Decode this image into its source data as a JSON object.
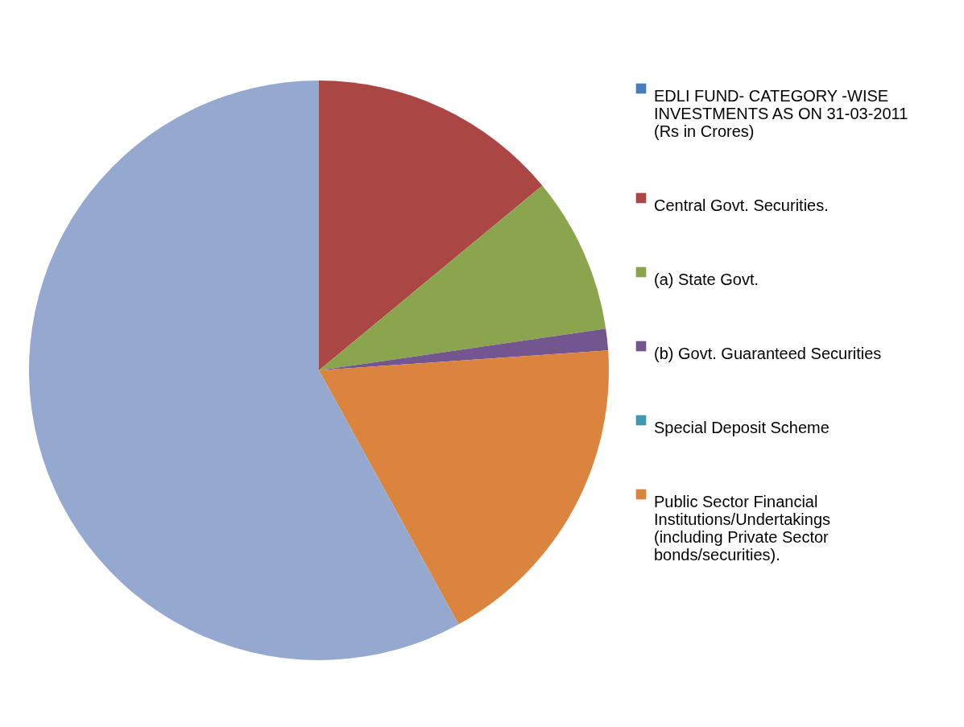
{
  "chart_data": {
    "type": "pie",
    "categories": [
      "EDLI FUND- CATEGORY -WISE INVESTMENTS AS ON 31-03-2011 (Rs in Crores)",
      "Central Govt. Securities.",
      "(a) State Govt.",
      "(b) Govt. Guaranteed Securities",
      "Special  Deposit Scheme",
      "Public Sector Financial Institutions/Undertakings (including Private Sector bonds/securities).",
      null
    ],
    "values": [
      0,
      14.0,
      8.7,
      1.2,
      0,
      18.1,
      58.0
    ],
    "colors": [
      "#4a7ebb",
      "#aa4644",
      "#8aa54e",
      "#735690",
      "#4198af",
      "#db843d",
      "#95a9d0"
    ],
    "legend": "right"
  }
}
